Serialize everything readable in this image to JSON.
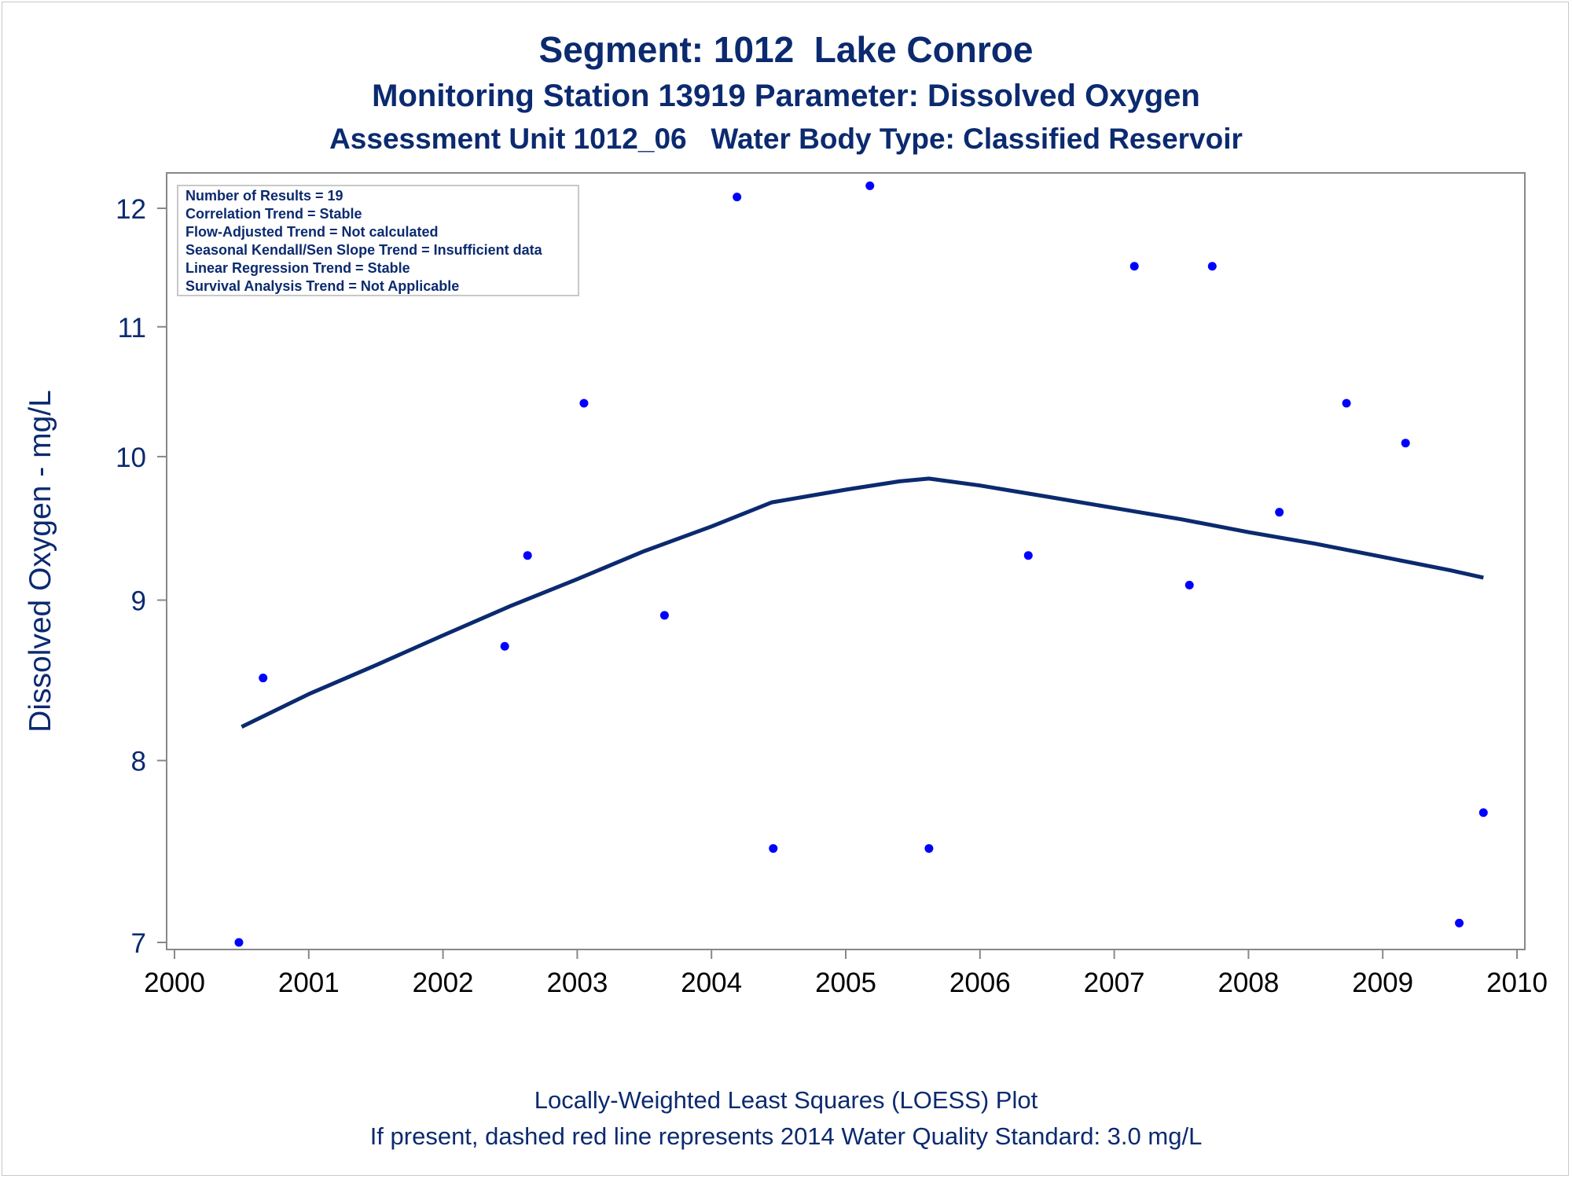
{
  "titles": {
    "line1": "Segment: 1012  Lake Conroe",
    "line2": "Monitoring Station 13919 Parameter: Dissolved Oxygen",
    "line3": "Assessment Unit 1012_06   Water Body Type: Classified Reservoir"
  },
  "footnotes": {
    "line1": "Locally-Weighted Least Squares (LOESS) Plot",
    "line2": "If present, dashed red line represents 2014 Water Quality Standard: 3.0 mg/L"
  },
  "stats_box": [
    "Number of Results = 19",
    "Correlation Trend = Stable",
    "Flow-Adjusted Trend = Not calculated",
    "Seasonal Kendall/Sen Slope Trend = Insufficient data",
    "Linear Regression Trend = Stable",
    "Survival Analysis Trend = Not Applicable"
  ],
  "colors": {
    "title": "#0b2a6f",
    "points": "#0000ff",
    "loess": "#0b2a6f",
    "axis": "#888888"
  },
  "chart_data": {
    "type": "scatter",
    "title": "Segment: 1012  Lake Conroe",
    "xlabel": "",
    "ylabel": "Dissolved Oxygen - mg/L",
    "xlim": [
      2000,
      2010
    ],
    "ylim": [
      7,
      12
    ],
    "y_scale": "log",
    "xticks": [
      "2000",
      "2001",
      "2002",
      "2003",
      "2004",
      "2005",
      "2006",
      "2007",
      "2008",
      "2009",
      "2010"
    ],
    "yticks": [
      "7",
      "8",
      "9",
      "10",
      "11",
      "12"
    ],
    "grid": false,
    "series": [
      {
        "kind": "points",
        "x": [
          2000.48,
          2000.66,
          2002.46,
          2002.63,
          2003.05,
          2003.65,
          2004.19,
          2004.46,
          2005.18,
          2005.62,
          2006.36,
          2007.15,
          2007.56,
          2007.73,
          2008.23,
          2008.73,
          2009.17,
          2009.57,
          2009.75
        ],
        "y": [
          7.0,
          8.5,
          8.7,
          9.3,
          10.4,
          8.9,
          12.1,
          7.5,
          12.2,
          7.5,
          9.3,
          11.5,
          9.1,
          11.5,
          9.6,
          10.4,
          10.1,
          7.1,
          7.7
        ]
      },
      {
        "kind": "loess",
        "x": [
          2000.5,
          2001.0,
          2001.5,
          2002.0,
          2002.5,
          2003.0,
          2003.5,
          2004.0,
          2004.45,
          2005.0,
          2005.4,
          2005.62,
          2006.0,
          2006.5,
          2007.0,
          2007.5,
          2008.0,
          2008.5,
          2009.0,
          2009.5,
          2009.75
        ],
        "y": [
          8.2,
          8.4,
          8.58,
          8.77,
          8.96,
          9.14,
          9.33,
          9.5,
          9.67,
          9.76,
          9.82,
          9.84,
          9.79,
          9.71,
          9.63,
          9.55,
          9.46,
          9.38,
          9.29,
          9.2,
          9.15
        ]
      }
    ]
  }
}
